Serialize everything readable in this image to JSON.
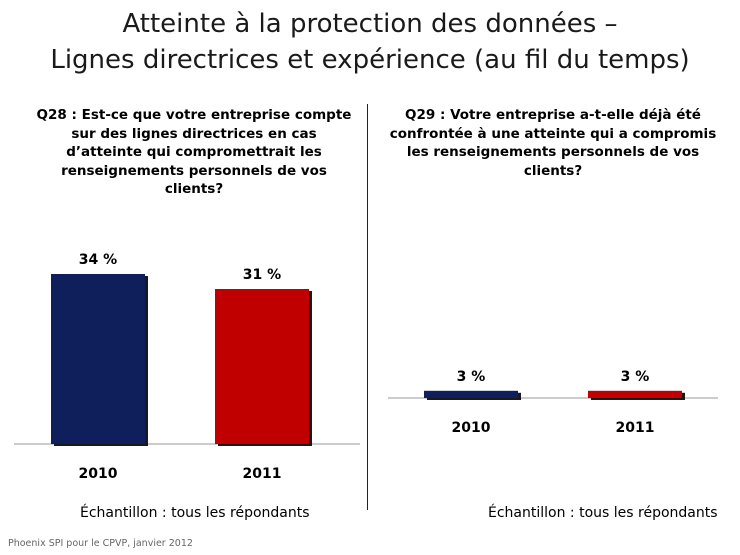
{
  "title": {
    "line1": "Atteinte à la protection des données –",
    "line2": "Lignes directrices et expérience (au fil du temps)"
  },
  "chart_data": [
    {
      "type": "bar",
      "title": "Q28 : Est-ce que votre entreprise compte sur des lignes directrices en cas d’atteinte qui compromettrait les renseignements personnels de vos clients?",
      "categories": [
        "2010",
        "2011"
      ],
      "values": [
        34,
        31
      ],
      "value_labels": [
        "34 %",
        "31 %"
      ],
      "colors": [
        "#0f1f5c",
        "#c00000"
      ],
      "ylim": [
        0,
        40
      ],
      "xlabel": "",
      "ylabel": "",
      "grid": false,
      "sample": "Échantillon : tous les répondants"
    },
    {
      "type": "bar",
      "title": "Q29 : Votre entreprise a-t-elle déjà été confrontée à une atteinte qui a compromis les renseignements personnels de vos clients?",
      "categories": [
        "2010",
        "2011"
      ],
      "values": [
        3,
        3
      ],
      "value_labels": [
        "3 %",
        "3 %"
      ],
      "colors": [
        "#0f1f5c",
        "#c00000"
      ],
      "ylim": [
        0,
        40
      ],
      "xlabel": "",
      "ylabel": "",
      "grid": false,
      "sample": "Échantillon : tous les répondants"
    }
  ],
  "source": "Phoenix SPI pour le CPVP, janvier 2012"
}
